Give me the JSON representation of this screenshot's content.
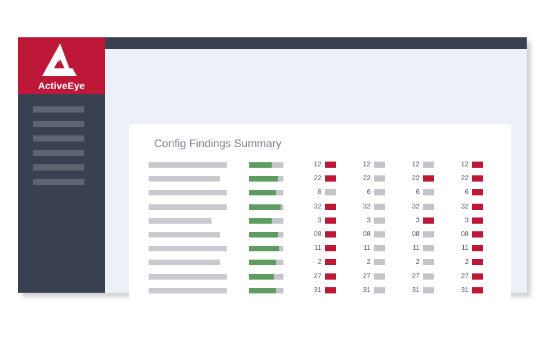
{
  "app": {
    "name": "ActiveEye",
    "colors": {
      "brand": "#be1838",
      "sidebar": "#394150",
      "success": "#5e9c61",
      "neutral": "#c3c5ca"
    },
    "logo_icon": "activeeye-logo-icon"
  },
  "sidebar": {
    "nav_item_count": 6
  },
  "panel": {
    "title": "Config Findings Summary",
    "rows": [
      {
        "label_fill": 0.9,
        "progress": 0.66,
        "cells": [
          {
            "value": "12",
            "status": "red"
          },
          {
            "value": "12",
            "status": "grey"
          },
          {
            "value": "12",
            "status": "grey"
          },
          {
            "value": "12",
            "status": "red"
          }
        ]
      },
      {
        "label_fill": 0.82,
        "progress": 0.84,
        "cells": [
          {
            "value": "22",
            "status": "red"
          },
          {
            "value": "22",
            "status": "grey"
          },
          {
            "value": "22",
            "status": "red"
          },
          {
            "value": "22",
            "status": "red"
          }
        ]
      },
      {
        "label_fill": 0.9,
        "progress": 0.78,
        "cells": [
          {
            "value": "6",
            "status": "grey"
          },
          {
            "value": "6",
            "status": "grey"
          },
          {
            "value": "6",
            "status": "grey"
          },
          {
            "value": "6",
            "status": "red"
          }
        ]
      },
      {
        "label_fill": 0.9,
        "progress": 0.92,
        "cells": [
          {
            "value": "32",
            "status": "red"
          },
          {
            "value": "32",
            "status": "grey"
          },
          {
            "value": "32",
            "status": "grey"
          },
          {
            "value": "32",
            "status": "red"
          }
        ]
      },
      {
        "label_fill": 0.72,
        "progress": 0.66,
        "cells": [
          {
            "value": "3",
            "status": "red"
          },
          {
            "value": "3",
            "status": "grey"
          },
          {
            "value": "3",
            "status": "red"
          },
          {
            "value": "3",
            "status": "red"
          }
        ]
      },
      {
        "label_fill": 0.82,
        "progress": 0.84,
        "cells": [
          {
            "value": "08",
            "status": "red"
          },
          {
            "value": "08",
            "status": "grey"
          },
          {
            "value": "08",
            "status": "grey"
          },
          {
            "value": "08",
            "status": "red"
          }
        ]
      },
      {
        "label_fill": 0.9,
        "progress": 0.88,
        "cells": [
          {
            "value": "11",
            "status": "red"
          },
          {
            "value": "11",
            "status": "grey"
          },
          {
            "value": "11",
            "status": "grey"
          },
          {
            "value": "11",
            "status": "red"
          }
        ]
      },
      {
        "label_fill": 0.82,
        "progress": 0.78,
        "cells": [
          {
            "value": "2",
            "status": "red"
          },
          {
            "value": "2",
            "status": "grey"
          },
          {
            "value": "2",
            "status": "grey"
          },
          {
            "value": "2",
            "status": "red"
          }
        ]
      },
      {
        "label_fill": 0.9,
        "progress": 0.72,
        "cells": [
          {
            "value": "27",
            "status": "red"
          },
          {
            "value": "27",
            "status": "grey"
          },
          {
            "value": "27",
            "status": "grey"
          },
          {
            "value": "27",
            "status": "red"
          }
        ]
      },
      {
        "label_fill": 0.9,
        "progress": 0.78,
        "cells": [
          {
            "value": "31",
            "status": "red"
          },
          {
            "value": "31",
            "status": "grey"
          },
          {
            "value": "31",
            "status": "grey"
          },
          {
            "value": "31",
            "status": "red"
          }
        ]
      }
    ]
  }
}
